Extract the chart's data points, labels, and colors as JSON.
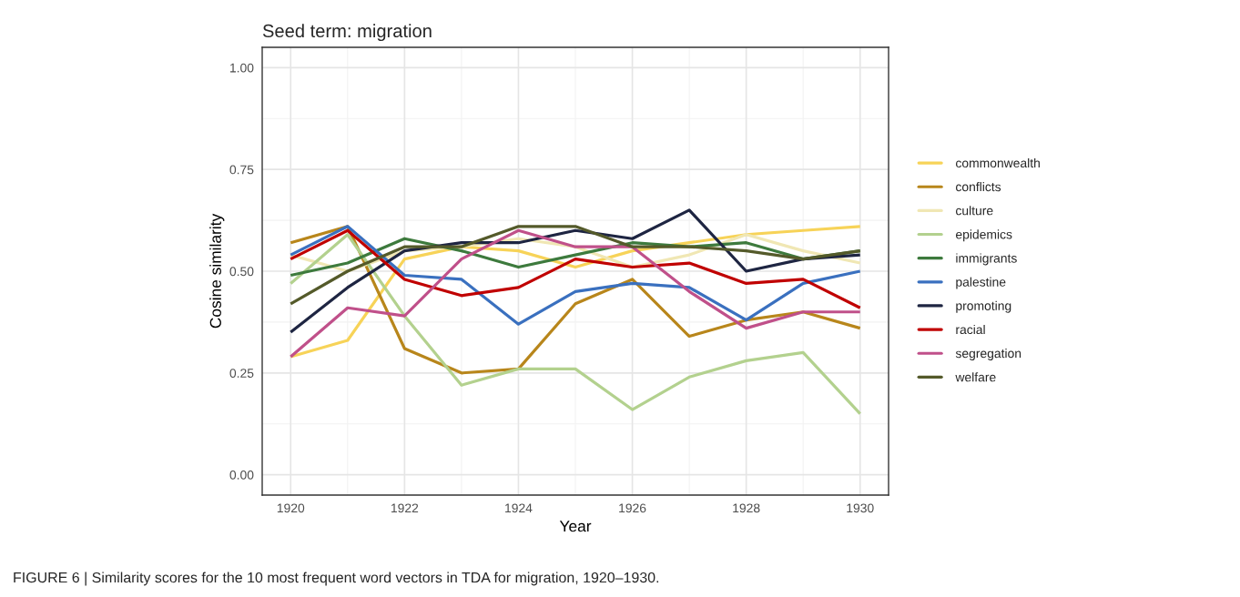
{
  "chart_data": {
    "type": "line",
    "title": "Seed term: migration",
    "xlabel": "Year",
    "ylabel": "Cosine similarity",
    "x": [
      1920,
      1921,
      1922,
      1923,
      1924,
      1925,
      1926,
      1927,
      1928,
      1929,
      1930
    ],
    "series": [
      {
        "name": "commonwealth",
        "color": "#f7d358",
        "values": [
          0.29,
          0.33,
          0.53,
          0.56,
          0.55,
          0.51,
          0.55,
          0.57,
          0.59,
          0.6,
          0.61
        ]
      },
      {
        "name": "conflicts",
        "color": "#b8861b",
        "values": [
          0.57,
          0.61,
          0.31,
          0.25,
          0.26,
          0.42,
          0.48,
          0.34,
          0.38,
          0.4,
          0.36
        ]
      },
      {
        "name": "culture",
        "color": "#f0e7b4",
        "values": [
          0.54,
          0.5,
          0.55,
          0.56,
          0.58,
          0.56,
          0.51,
          0.54,
          0.59,
          0.55,
          0.52
        ]
      },
      {
        "name": "epidemics",
        "color": "#b3d18e",
        "values": [
          0.47,
          0.59,
          0.39,
          0.22,
          0.26,
          0.26,
          0.16,
          0.24,
          0.28,
          0.3,
          0.15
        ]
      },
      {
        "name": "immigrants",
        "color": "#3d7a3d",
        "values": [
          0.49,
          0.52,
          0.58,
          0.55,
          0.51,
          0.54,
          0.57,
          0.56,
          0.57,
          0.53,
          0.55
        ]
      },
      {
        "name": "palestine",
        "color": "#3a70bf",
        "values": [
          0.54,
          0.61,
          0.49,
          0.48,
          0.37,
          0.45,
          0.47,
          0.46,
          0.38,
          0.47,
          0.5
        ]
      },
      {
        "name": "promoting",
        "color": "#1e2542",
        "values": [
          0.35,
          0.46,
          0.55,
          0.57,
          0.57,
          0.6,
          0.58,
          0.65,
          0.5,
          0.53,
          0.54
        ]
      },
      {
        "name": "racial",
        "color": "#c00000",
        "values": [
          0.53,
          0.6,
          0.48,
          0.44,
          0.46,
          0.53,
          0.51,
          0.52,
          0.47,
          0.48,
          0.41
        ]
      },
      {
        "name": "segregation",
        "color": "#c0508a",
        "values": [
          0.29,
          0.41,
          0.39,
          0.53,
          0.6,
          0.56,
          0.56,
          0.45,
          0.36,
          0.4,
          0.4
        ]
      },
      {
        "name": "welfare",
        "color": "#545a2a",
        "values": [
          0.42,
          0.5,
          0.56,
          0.56,
          0.61,
          0.61,
          0.56,
          0.56,
          0.55,
          0.53,
          0.55
        ]
      }
    ],
    "xlim": [
      1919.5,
      1930.5
    ],
    "ylim": [
      -0.05,
      1.05
    ],
    "xticks": [
      1920,
      1922,
      1924,
      1926,
      1928,
      1930
    ],
    "yticks": [
      {
        "value": 0,
        "label": "0.00"
      },
      {
        "value": 0.25,
        "label": "0.25"
      },
      {
        "value": 0.5,
        "label": "0.50"
      },
      {
        "value": 0.75,
        "label": "0.75"
      },
      {
        "value": 1,
        "label": "1.00"
      }
    ],
    "grid": true,
    "legend": "right",
    "line_style": "solid",
    "annotations": [
      "FIGURE 6 | Similarity scores for the 10 most frequent word vectors in TDA for migration, 1920–1930."
    ]
  }
}
